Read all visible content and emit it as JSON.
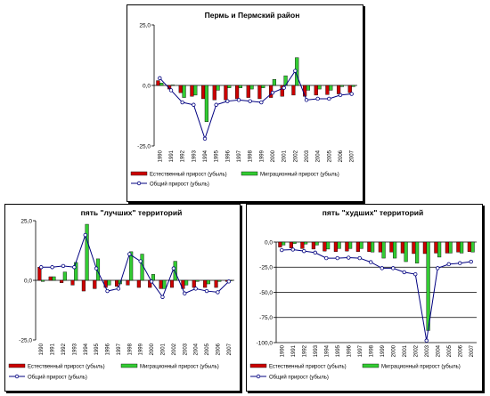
{
  "chart_data": [
    {
      "type": "bar",
      "title": "Пермь и Пермский район",
      "categories": [
        "1990",
        "1991",
        "1992",
        "1993",
        "1994",
        "1995",
        "1996",
        "1997",
        "1998",
        "1999",
        "2000",
        "2001",
        "2002",
        "2003",
        "2004",
        "2005",
        "2006",
        "2007"
      ],
      "series": [
        {
          "name": "Естественный прирост (убыль)",
          "type": "bar",
          "color": "#cc0000",
          "values": [
            2.0,
            -1.5,
            -3.0,
            -4.5,
            -5.5,
            -6.0,
            -6.0,
            -5.5,
            -5.0,
            -5.5,
            -5.0,
            -4.5,
            -4.0,
            -4.5,
            -4.0,
            -3.8,
            -3.5,
            -3.0
          ]
        },
        {
          "name": "Миграционный прирост (убыль)",
          "type": "bar",
          "color": "#33cc33",
          "values": [
            1.0,
            0.2,
            -5.0,
            -4.0,
            -15.0,
            -2.0,
            -1.0,
            -1.0,
            -1.5,
            -1.0,
            2.5,
            4.0,
            11.5,
            -2.0,
            -1.5,
            -2.0,
            -0.5,
            -0.5
          ]
        },
        {
          "name": "Общий прирост (убыль)",
          "type": "line",
          "color": "#000080",
          "values": [
            3.0,
            -2.0,
            -7.0,
            -8.0,
            -22.0,
            -8.0,
            -6.5,
            -6.0,
            -6.5,
            -7.0,
            -3.0,
            -1.0,
            6.0,
            -6.0,
            -5.5,
            -5.5,
            -4.0,
            -3.5
          ]
        }
      ],
      "ylim": [
        -25,
        25
      ],
      "yticks": [
        "25,0",
        "0,0",
        "-25,0"
      ],
      "legend": "bottom"
    },
    {
      "type": "bar",
      "title": "пять \"лучших\" территорий",
      "categories": [
        "1990",
        "1991",
        "1992",
        "1993",
        "1994",
        "1995",
        "1996",
        "1997",
        "1998",
        "1999",
        "2000",
        "2001",
        "2002",
        "2003",
        "2004",
        "2005",
        "2006",
        "2007"
      ],
      "series": [
        {
          "name": "Естественный прирост (убыль)",
          "type": "bar",
          "color": "#cc0000",
          "values": [
            5.5,
            1.5,
            -1.0,
            -2.0,
            -4.5,
            -3.5,
            -3.0,
            -2.5,
            -2.0,
            -3.0,
            -3.0,
            -3.5,
            -3.0,
            -3.5,
            -3.0,
            -3.0,
            -3.0,
            -0.5
          ]
        },
        {
          "name": "Миграционный прирост (убыль)",
          "type": "bar",
          "color": "#33cc33",
          "values": [
            -0.5,
            1.5,
            3.5,
            7.5,
            23.5,
            9.0,
            -2.0,
            -1.5,
            12.0,
            11.0,
            2.5,
            -3.5,
            8.0,
            -2.0,
            -0.5,
            -1.5,
            -0.5,
            0.0
          ]
        },
        {
          "name": "Общий прирост (убыль)",
          "type": "line",
          "color": "#000080",
          "values": [
            5.5,
            5.5,
            6.0,
            5.5,
            19.0,
            5.0,
            -4.5,
            -3.5,
            11.0,
            8.0,
            -0.5,
            -7.0,
            5.0,
            -5.5,
            -3.5,
            -4.5,
            -5.0,
            -0.5
          ]
        }
      ],
      "ylim": [
        -25,
        25
      ],
      "yticks": [
        "25,0",
        "0,0",
        "-25,0"
      ],
      "legend": "bottom"
    },
    {
      "type": "bar",
      "title": "пять \"худших\" территорий",
      "categories": [
        "1990",
        "1991",
        "1992",
        "1993",
        "1994",
        "1995",
        "1996",
        "1997",
        "1998",
        "1999",
        "2000",
        "2001",
        "2002",
        "2003",
        "2004",
        "2005",
        "2006",
        "2007"
      ],
      "series": [
        {
          "name": "Естественный прирост (убыль)",
          "type": "bar",
          "color": "#cc0000",
          "values": [
            -5.0,
            -6.0,
            -6.5,
            -7.0,
            -9.0,
            -9.5,
            -9.0,
            -9.5,
            -9.5,
            -10.0,
            -10.0,
            -11.0,
            -11.5,
            -11.5,
            -11.0,
            -11.0,
            -10.0,
            -9.5
          ]
        },
        {
          "name": "Миграционный прирост (убыль)",
          "type": "bar",
          "color": "#33cc33",
          "values": [
            -3.0,
            -1.5,
            -2.0,
            -3.0,
            -7.0,
            -6.5,
            -6.5,
            -6.5,
            -10.0,
            -16.0,
            -16.0,
            -19.5,
            -21.0,
            -88.0,
            -15.0,
            -11.0,
            -11.0,
            -10.0
          ]
        },
        {
          "name": "Общий прирост (убыль)",
          "type": "line",
          "color": "#000080",
          "values": [
            -8.0,
            -7.5,
            -9.0,
            -10.5,
            -16.0,
            -16.0,
            -15.5,
            -16.0,
            -20.0,
            -26.0,
            -26.0,
            -30.0,
            -32.0,
            -98.0,
            -26.0,
            -22.0,
            -21.0,
            -19.5
          ]
        }
      ],
      "ylim": [
        -100,
        0
      ],
      "yticks": [
        "0,0",
        "-25,0",
        "-50,0",
        "-75,0",
        "-100,0"
      ],
      "grid": true,
      "legend": "bottom"
    }
  ]
}
